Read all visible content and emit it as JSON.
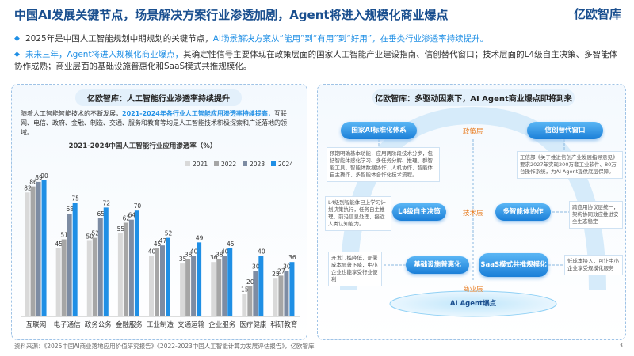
{
  "header": {
    "title": "中国AI发展关键节点，场景解决方案行业渗透加剧，Agent将进入规模化商业爆点",
    "logo": "亿欧智库"
  },
  "bullets": [
    {
      "parts": [
        "2025年是中国人工智能规划中期规划的关键节点，",
        "AI场景解决方案从“能用”到“有用”到“好用”，在垂类行业渗透率持续提升。"
      ]
    },
    {
      "parts": [
        "未来三年，Agent将进入规模化商业爆点，",
        "其确定性信号主要体现在政策层面的国家人工智能产业建设指南、信创替代窗口；技术层面的L4级自主决策、多智能体协作成熟；商业层面的基础设施普惠化和SaaS模式共推规模化。"
      ]
    }
  ],
  "left_panel": {
    "title": "亿欧智库：人工智能行业渗透率持续提升",
    "text_parts": [
      "随着人工智能智能技术的不断发展，",
      "2021-2024年各行业人工智能应用渗透率持续提高，",
      "互联网、电信、政府、金融、制造、交通、服务和教育等均是人工智能技术积极探索和广泛落地的领域。"
    ]
  },
  "chart_data": {
    "type": "bar",
    "title": "2021-2024中国人工智能行业应用渗透率（%）",
    "legend": "upper right",
    "categories": [
      "互联网",
      "电子通信",
      "政务公务",
      "金融服务",
      "工业制造",
      "交通运输",
      "企业服务",
      "医疗健康",
      "科研教育"
    ],
    "series": [
      {
        "name": "2021",
        "color": "#d9d9d9",
        "values": [
          82,
          45,
          50,
          55,
          40,
          35,
          36,
          15,
          25
        ]
      },
      {
        "name": "2022",
        "color": "#a6a6a6",
        "values": [
          86,
          51,
          52,
          62,
          45,
          38,
          38,
          20,
          27
        ]
      },
      {
        "name": "2023",
        "color": "#7d8ca3",
        "values": [
          89,
          68,
          65,
          64,
          47,
          40,
          40,
          30,
          30
        ]
      },
      {
        "name": "2024",
        "color": "#1f8fe5",
        "values": [
          90,
          75,
          72,
          70,
          52,
          49,
          45,
          40,
          36
        ]
      }
    ]
  },
  "right_panel": {
    "title": "亿欧智库：多驱动因素下，AI Agent商业爆点即将到来",
    "layers": [
      "政策层",
      "技术层",
      "商业层"
    ],
    "nodes": [
      {
        "label": "国家AI标准化体系"
      },
      {
        "label": "信创替代窗口"
      },
      {
        "label": "L4级自主决策"
      },
      {
        "label": "多智能体协作"
      },
      {
        "label": "基础设施普惠化"
      },
      {
        "label": "SaaS模式共推规模化"
      },
      {
        "label": "AI Agent爆点"
      }
    ],
    "notes": [
      "预期明确基本功能，应用两阶段技术分步，包括智能体感化学习、多任务分解、推理、群智能工具，智能体数据协作、人机协作、智能体自主操作、多智能体合作化技术流程。",
      "工信部《关于推进信创产业发展指导意见》要求2027年实现200万套工业软件、80万台操作系统，为AI Agent提供底层保障。",
      "L4级别智能体已上学习计划决策执行，任务自主推理，前沿信息处理，接近人类认知能力。",
      "跨应用协议层统一，架构协同效应推进安全生态稳定",
      "开发门槛降低，部署成本显著下降，中小企业也能享受行业便利",
      "低成本接入，可让中小企业享受规模化服务"
    ]
  },
  "footer": {
    "source": "资料来源：《2025中国AI商业落地应用价值研究报告》《2022-2023中国人工智能计算力发展评估报告》，亿欧智库",
    "page": "3"
  }
}
